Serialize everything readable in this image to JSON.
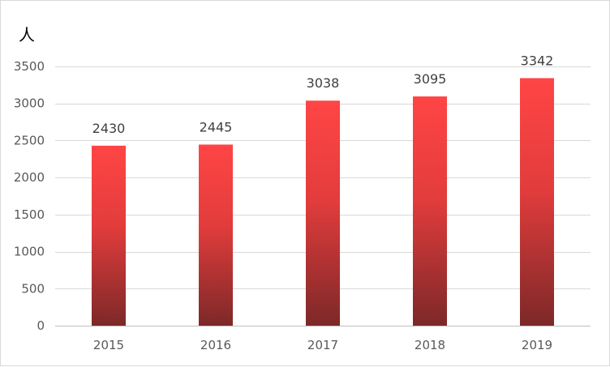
{
  "chart_data": {
    "type": "bar",
    "ylabel": "人",
    "categories": [
      "2015",
      "2016",
      "2017",
      "2018",
      "2019"
    ],
    "series": [
      {
        "values": [
          2430,
          2445,
          3038,
          3095,
          3342
        ]
      }
    ],
    "ylim": [
      0,
      3500
    ],
    "yticks": [
      0,
      500,
      1000,
      1500,
      2000,
      2500,
      3000,
      3500
    ],
    "grid": true,
    "legend": "none",
    "data_labels": true,
    "colors": {
      "bar_top": "#ff4545",
      "bar_bottom": "#7d2828",
      "grid": "#d9d9d9"
    }
  }
}
